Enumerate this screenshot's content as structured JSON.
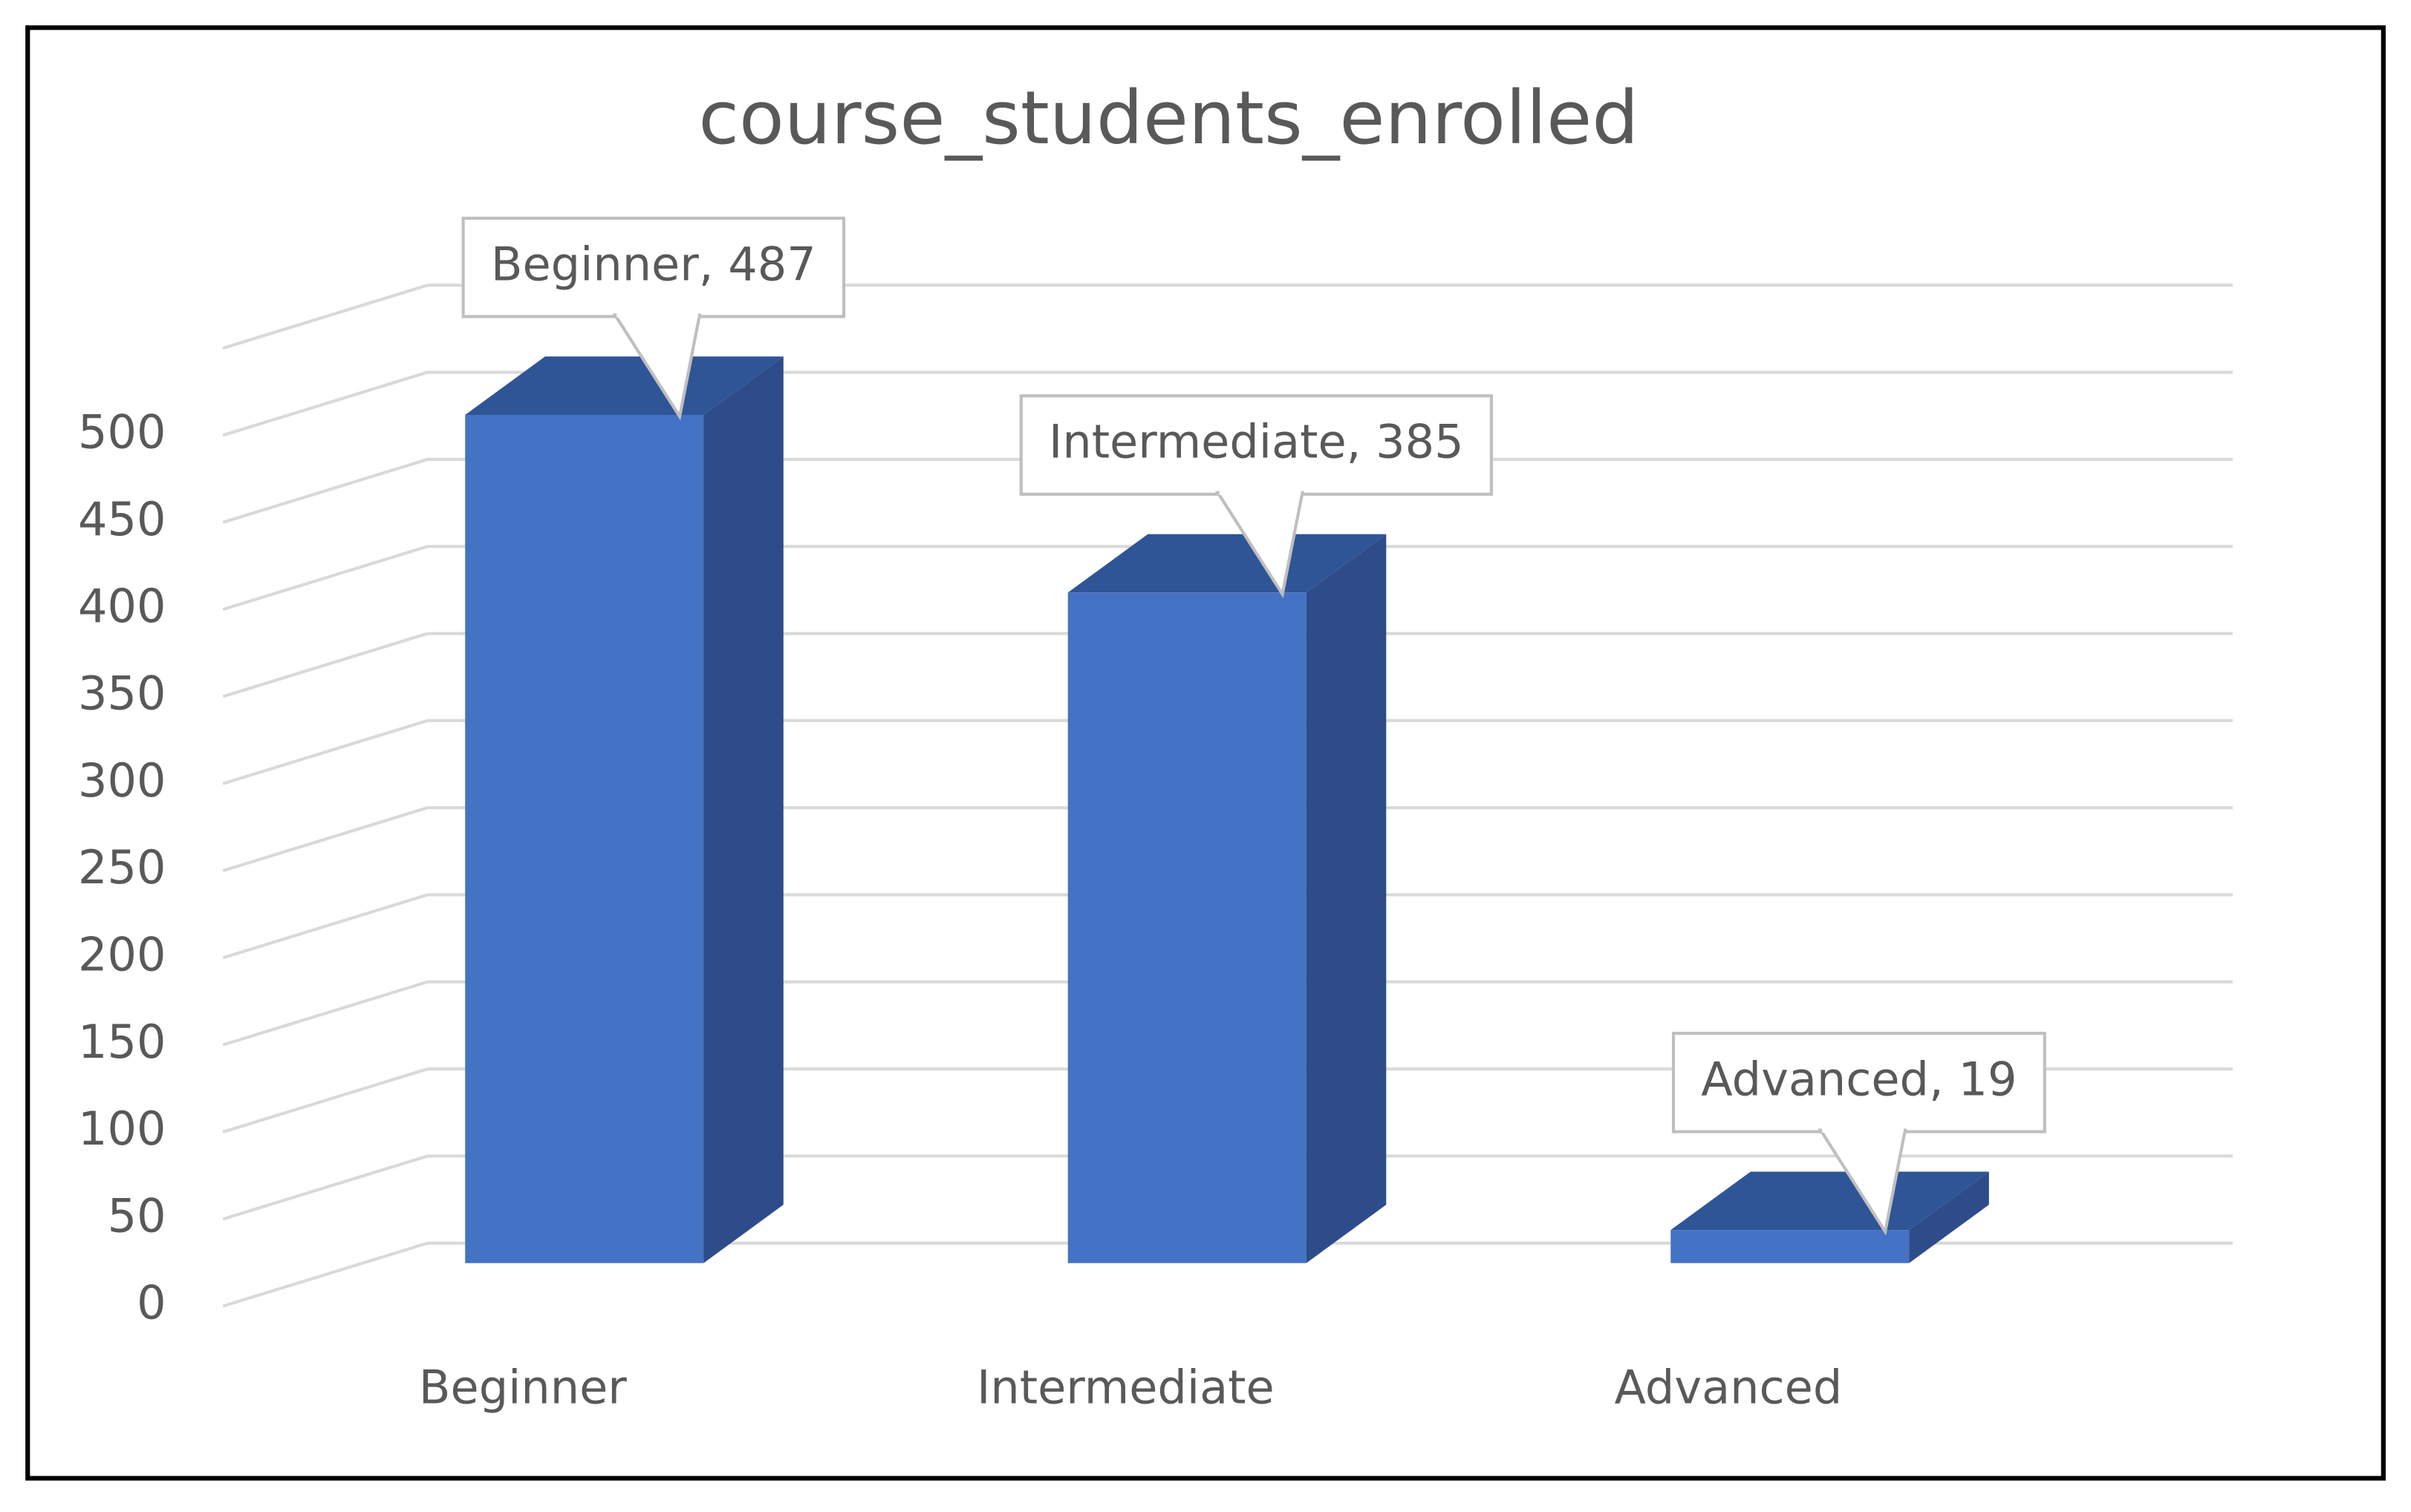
{
  "chart_data": {
    "type": "bar3d",
    "title": "course_students_enrolled",
    "categories": [
      "Beginner",
      "Intermediate",
      "Advanced"
    ],
    "values": [
      487,
      385,
      19
    ],
    "value_labels": [
      "Beginner, 487",
      "Intermediate, 385",
      "Advanced, 19"
    ],
    "color": "#4472c4",
    "ylim": [
      0,
      550
    ],
    "yticks": [
      0,
      50,
      100,
      150,
      200,
      250,
      300,
      350,
      400,
      450,
      500
    ],
    "grid": true
  }
}
